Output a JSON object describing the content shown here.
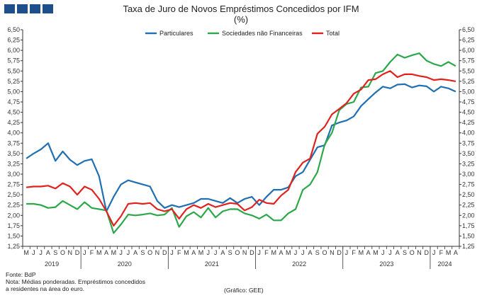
{
  "header": {
    "title": "Taxa de Juro de Novos Empréstimos Concedidos por IFM",
    "subtitle": "(%)"
  },
  "colors": {
    "logo": "#1f4e8c",
    "particulares": "#1f6fb2",
    "sociedades": "#2ca84a",
    "total": "#e0221e"
  },
  "chart_data": {
    "type": "line",
    "title": "Taxa de Juro de Novos Empréstimos Concedidos por IFM",
    "subtitle": "(%)",
    "ylim": [
      1.25,
      6.5
    ],
    "y_ticks": [
      "6,50",
      "6,25",
      "6,00",
      "5,75",
      "5,50",
      "5,25",
      "5,00",
      "4,75",
      "4,50",
      "4,25",
      "4,00",
      "3,75",
      "3,50",
      "3,25",
      "3,00",
      "2,75",
      "2,50",
      "2,25",
      "2,00",
      "1,75",
      "1,50",
      "1,25"
    ],
    "grid": false,
    "legend_position": "top",
    "x_month_labels": [
      "M",
      "J",
      "J",
      "A",
      "S",
      "O",
      "N",
      "D",
      "J",
      "F",
      "M",
      "A",
      "M",
      "J",
      "J",
      "A",
      "S",
      "O",
      "N",
      "D",
      "J",
      "F",
      "M",
      "A",
      "M",
      "J",
      "J",
      "A",
      "S",
      "O",
      "N",
      "D",
      "J",
      "F",
      "M",
      "A",
      "M",
      "J",
      "J",
      "A",
      "S",
      "O",
      "N",
      "D",
      "J",
      "F",
      "M",
      "A",
      "M",
      "J",
      "J",
      "A",
      "S",
      "O",
      "N",
      "D",
      "J",
      "F",
      "M",
      "A"
    ],
    "x_year_labels": [
      "2019",
      "2020",
      "2021",
      "2022",
      "2023",
      "2024"
    ],
    "series": [
      {
        "name": "Particulares",
        "values": [
          3.38,
          3.5,
          3.6,
          3.75,
          3.32,
          3.55,
          3.35,
          3.22,
          3.32,
          3.36,
          2.95,
          2.1,
          2.45,
          2.75,
          2.85,
          2.8,
          2.75,
          2.7,
          2.35,
          2.18,
          2.25,
          2.2,
          2.25,
          2.3,
          2.4,
          2.4,
          2.35,
          2.3,
          2.42,
          2.3,
          2.4,
          2.45,
          2.25,
          2.45,
          2.62,
          2.62,
          2.68,
          2.95,
          3.05,
          3.35,
          3.65,
          3.7,
          4.18,
          4.25,
          4.3,
          4.4,
          4.65,
          4.82,
          4.98,
          5.12,
          5.08,
          5.17,
          5.18,
          5.1,
          5.15,
          5.13,
          5.0,
          5.12,
          5.08,
          5.0
        ]
      },
      {
        "name": "Sociedades não Financeiras",
        "values": [
          2.28,
          2.28,
          2.25,
          2.18,
          2.2,
          2.35,
          2.25,
          2.15,
          2.32,
          2.18,
          2.15,
          2.12,
          1.57,
          1.78,
          2.02,
          2.0,
          2.02,
          2.05,
          2.0,
          2.02,
          2.18,
          1.72,
          1.98,
          2.08,
          1.95,
          2.18,
          1.95,
          2.1,
          2.15,
          2.15,
          2.05,
          2.0,
          1.92,
          2.02,
          1.88,
          1.88,
          2.05,
          2.15,
          2.62,
          2.75,
          3.05,
          3.72,
          4.0,
          4.55,
          4.7,
          4.75,
          5.1,
          5.12,
          5.45,
          5.5,
          5.72,
          5.9,
          5.82,
          5.88,
          5.93,
          5.75,
          5.67,
          5.62,
          5.72,
          5.62
        ]
      },
      {
        "name": "Total",
        "values": [
          2.68,
          2.7,
          2.7,
          2.72,
          2.65,
          2.78,
          2.7,
          2.5,
          2.7,
          2.62,
          2.4,
          2.1,
          1.75,
          1.98,
          2.28,
          2.3,
          2.28,
          2.3,
          2.15,
          2.1,
          2.15,
          1.92,
          2.15,
          2.25,
          2.18,
          2.28,
          2.2,
          2.25,
          2.3,
          2.28,
          2.12,
          2.2,
          2.38,
          2.3,
          2.28,
          2.48,
          2.62,
          3.05,
          3.28,
          3.38,
          3.98,
          4.15,
          4.45,
          4.58,
          4.72,
          4.95,
          5.05,
          5.28,
          5.3,
          5.42,
          5.5,
          5.35,
          5.42,
          5.42,
          5.38,
          5.35,
          5.28,
          5.3,
          5.28,
          5.25
        ]
      }
    ]
  },
  "footer": {
    "source": "Fonte: BdP",
    "note_line1": "Nota: Médias ponderadas.  Empréstimos concedidos",
    "note_line2": "a residentes na área do euro.",
    "credit": "(Gráfico: GEE)"
  }
}
